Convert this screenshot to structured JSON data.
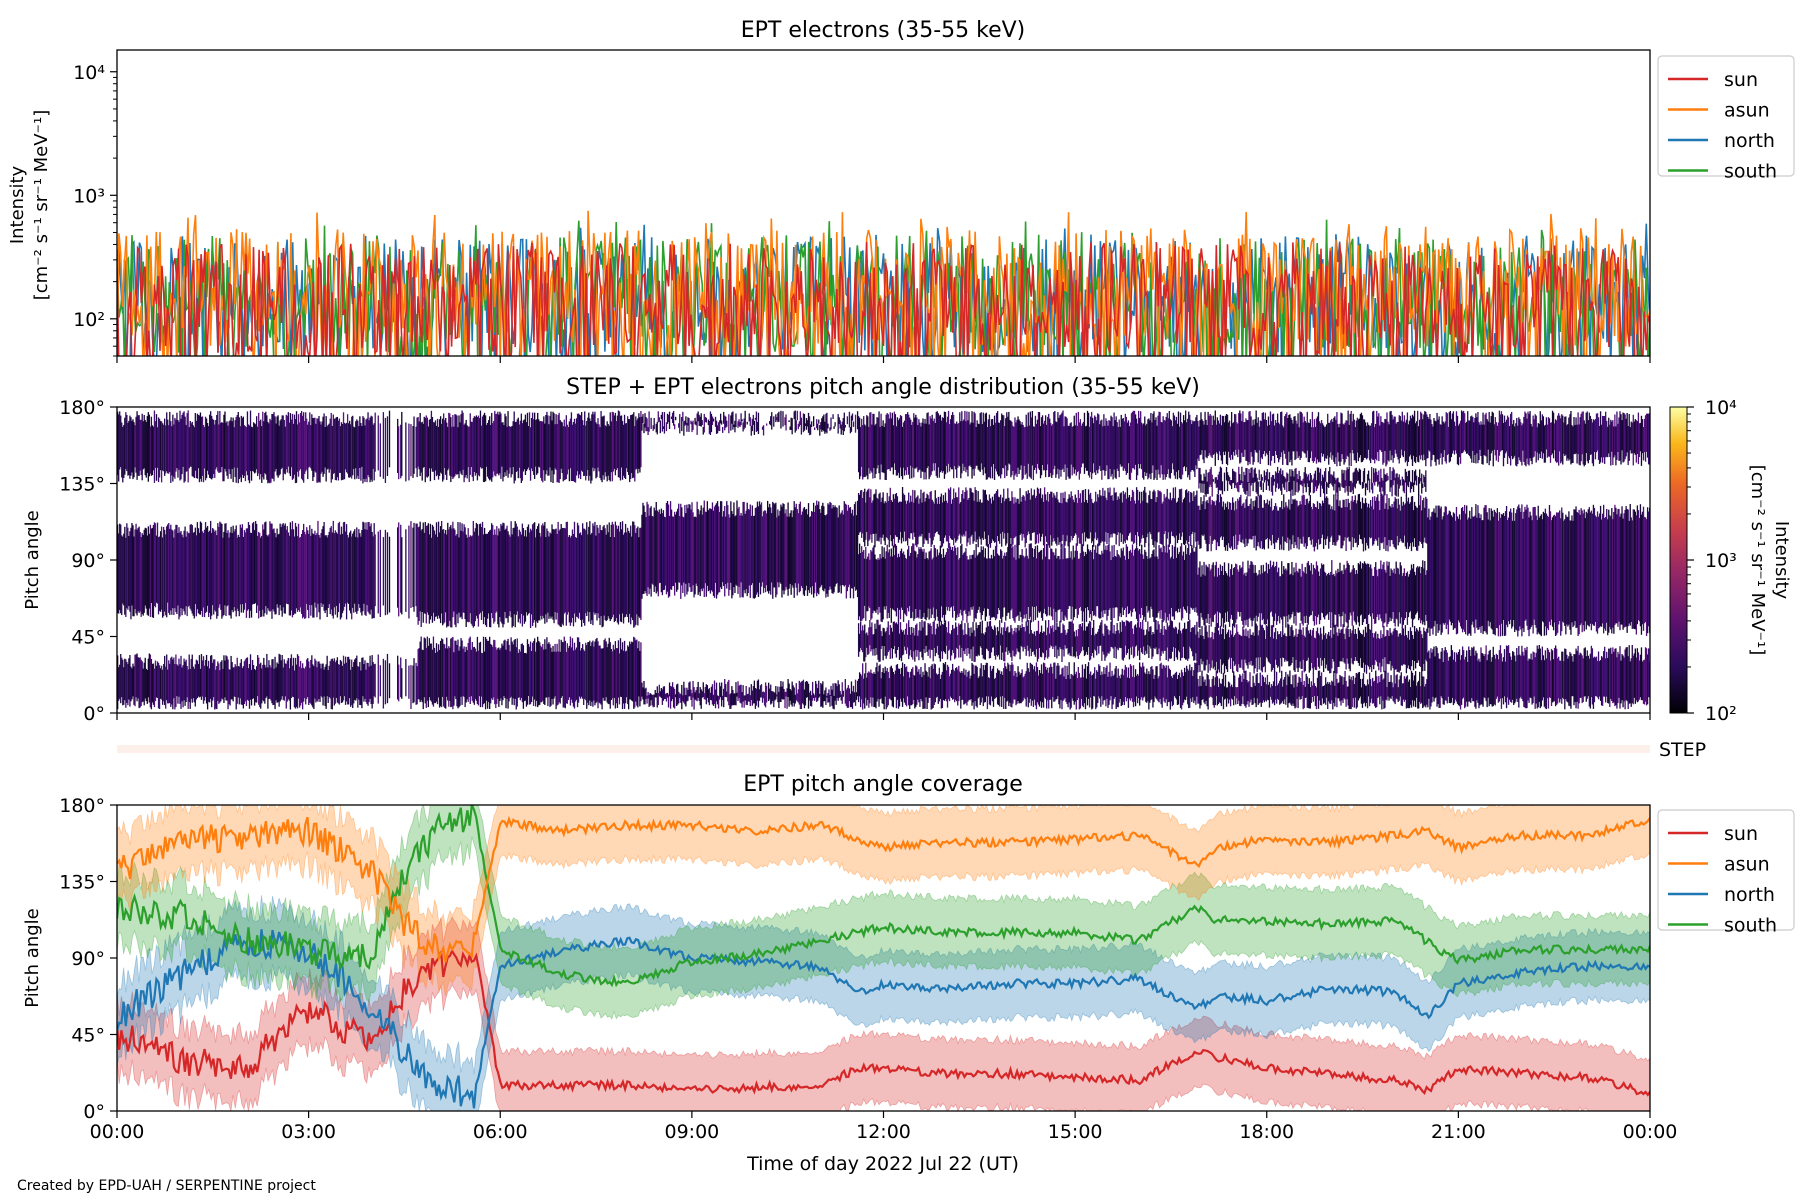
{
  "figure": {
    "credit": "Created by EPD-UAH / SERPENTINE project",
    "xlabel": "Time of day 2022 Jul 22 (UT)",
    "xticks": [
      "00:00",
      "03:00",
      "06:00",
      "09:00",
      "12:00",
      "15:00",
      "18:00",
      "21:00",
      "00:00"
    ]
  },
  "colors": {
    "sun": "#d62728",
    "asun": "#ff7f0e",
    "north": "#1f77b4",
    "south": "#2ca02c"
  },
  "chart_data": [
    {
      "type": "line",
      "title": "EPT electrons (35-55 keV)",
      "ylabel_line1": "Intensity",
      "ylabel_line2": "[cm⁻² s⁻¹ sr⁻¹ MeV⁻¹]",
      "yscale": "log",
      "ylim": [
        50,
        15000
      ],
      "yticks": [
        "10²",
        "10³",
        "10⁴"
      ],
      "ytick_values": [
        100,
        1000,
        10000
      ],
      "xlim_hours": [
        0,
        24
      ],
      "legend": "top-right",
      "series": [
        {
          "name": "sun",
          "key": "sun",
          "typical": 140,
          "spread_max": 400,
          "noisy": true
        },
        {
          "name": "asun",
          "key": "asun",
          "typical": 180,
          "spread_max": 750,
          "noisy": true
        },
        {
          "name": "north",
          "key": "north",
          "typical": 160,
          "spread_max": 600,
          "noisy": true
        },
        {
          "name": "south",
          "key": "south",
          "typical": 160,
          "spread_max": 650,
          "noisy": true
        }
      ]
    },
    {
      "type": "heatmap",
      "title": "STEP + EPT electrons pitch angle distribution (35-55 keV)",
      "ylabel": "Pitch angle",
      "yticks": [
        "0°",
        "45°",
        "90°",
        "135°",
        "180°"
      ],
      "ytick_values": [
        0,
        45,
        90,
        135,
        180
      ],
      "xlim_hours": [
        0,
        24
      ],
      "colorbar": {
        "label_line1": "Intensity",
        "label_line2": "[cm⁻² s⁻¹ sr⁻¹ MeV⁻¹]",
        "scale": "log",
        "range": [
          100,
          10000
        ],
        "ticks": [
          "10²",
          "10³",
          "10⁴"
        ],
        "colormap": "inferno"
      },
      "data_gap_bands_deg": [
        {
          "from_h": 0.0,
          "to_h": 4.7,
          "gaps": [
            [
              30,
              60
            ],
            [
              108,
              140
            ]
          ]
        },
        {
          "from_h": 4.7,
          "to_h": 8.2,
          "gaps": [
            [
              40,
              55
            ],
            [
              108,
              140
            ]
          ]
        },
        {
          "from_h": 8.2,
          "to_h": 11.6,
          "gaps": [
            [
              15,
              72
            ],
            [
              120,
              168
            ]
          ]
        },
        {
          "from_h": 11.6,
          "to_h": 16.9,
          "gaps": [
            [
              25,
              35
            ],
            [
              50,
              58
            ],
            [
              95,
              102
            ],
            [
              128,
              142
            ]
          ]
        },
        {
          "from_h": 16.9,
          "to_h": 20.5,
          "gaps": [
            [
              20,
              28
            ],
            [
              48,
              55
            ],
            [
              85,
              100
            ],
            [
              124,
              132
            ],
            [
              140,
              150
            ]
          ]
        },
        {
          "from_h": 20.5,
          "to_h": 24.0,
          "gaps": [
            [
              35,
              50
            ],
            [
              118,
              150
            ]
          ]
        }
      ]
    },
    {
      "type": "heatmap",
      "title": "",
      "strip_label": "STEP",
      "note": "near-empty STEP strip"
    },
    {
      "type": "line",
      "title": "EPT pitch angle coverage",
      "ylabel": "Pitch angle",
      "yticks": [
        "0°",
        "45°",
        "90°",
        "135°",
        "180°"
      ],
      "ytick_values": [
        0,
        45,
        90,
        135,
        180
      ],
      "ylim": [
        0,
        180
      ],
      "xlim_hours": [
        0,
        24
      ],
      "legend": "top-right",
      "shaded_band_halfwidth_deg": 20,
      "series": [
        {
          "name": "sun",
          "key": "sun",
          "x_hours": [
            0,
            1,
            2,
            3,
            4,
            4.5,
            5,
            5.6,
            6,
            7,
            8,
            9,
            10,
            11,
            11.6,
            12,
            13,
            14,
            15,
            16,
            16.9,
            17.2,
            18,
            19,
            20,
            20.5,
            21,
            22,
            23,
            24
          ],
          "values": [
            45,
            30,
            25,
            60,
            40,
            70,
            85,
            95,
            15,
            15,
            15,
            12,
            14,
            15,
            25,
            25,
            22,
            22,
            20,
            18,
            35,
            32,
            25,
            22,
            18,
            12,
            25,
            22,
            20,
            10
          ]
        },
        {
          "name": "asun",
          "key": "asun",
          "x_hours": [
            0,
            1,
            2,
            3,
            4,
            4.5,
            5,
            5.6,
            6,
            7,
            8,
            9,
            10,
            11,
            11.6,
            12,
            13,
            14,
            15,
            16,
            16.9,
            17.2,
            18,
            19,
            20,
            20.5,
            21,
            22,
            23,
            24
          ],
          "values": [
            140,
            160,
            160,
            165,
            140,
            110,
            95,
            100,
            170,
            165,
            168,
            168,
            165,
            168,
            160,
            155,
            158,
            158,
            160,
            162,
            145,
            155,
            160,
            158,
            162,
            165,
            155,
            162,
            162,
            172
          ]
        },
        {
          "name": "north",
          "key": "north",
          "x_hours": [
            0,
            1,
            2,
            3,
            4,
            4.5,
            5,
            5.6,
            6,
            7,
            8,
            9,
            10,
            11,
            11.6,
            12,
            13,
            14,
            15,
            16,
            16.9,
            17.2,
            18,
            19,
            20,
            20.5,
            21,
            22,
            23,
            24
          ],
          "values": [
            55,
            80,
            100,
            95,
            60,
            35,
            15,
            10,
            85,
            95,
            100,
            90,
            88,
            85,
            70,
            75,
            72,
            75,
            75,
            78,
            60,
            68,
            65,
            72,
            70,
            55,
            75,
            82,
            85,
            85
          ]
        },
        {
          "name": "south",
          "key": "south",
          "x_hours": [
            0,
            1,
            2,
            3,
            4,
            4.5,
            5,
            5.6,
            6,
            7,
            8,
            9,
            10,
            11,
            11.6,
            12,
            13,
            14,
            15,
            16,
            16.9,
            17.2,
            18,
            19,
            20,
            20.5,
            21,
            22,
            23,
            24
          ],
          "values": [
            120,
            115,
            100,
            95,
            90,
            140,
            165,
            175,
            95,
            80,
            75,
            88,
            92,
            100,
            105,
            108,
            105,
            105,
            105,
            100,
            120,
            112,
            112,
            110,
            112,
            100,
            88,
            95,
            95,
            95
          ]
        }
      ]
    }
  ]
}
